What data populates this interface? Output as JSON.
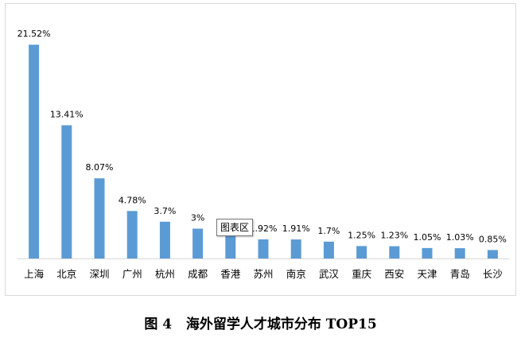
{
  "caption": "图 4   海外留学人才城市分布 TOP15",
  "tooltip_text": "图表区",
  "colors": {
    "bar": "#5b9bd5",
    "axis": "#d9d9d9"
  },
  "chart_data": {
    "type": "bar",
    "title": "",
    "xlabel": "",
    "ylabel": "",
    "ylim": [
      0,
      22.5
    ],
    "grid": false,
    "legend": "none",
    "categories": [
      "上海",
      "北京",
      "深圳",
      "广州",
      "杭州",
      "成都",
      "香港",
      "苏州",
      "南京",
      "武汉",
      "重庆",
      "西安",
      "天津",
      "青岛",
      "长沙"
    ],
    "values": [
      21.52,
      13.41,
      8.07,
      4.78,
      3.7,
      3.0,
      2.5,
      1.92,
      1.91,
      1.7,
      1.25,
      1.23,
      1.05,
      1.03,
      0.85
    ],
    "data_labels": [
      "21.52%",
      "13.41%",
      "8.07%",
      "4.78%",
      "3.7%",
      "3%",
      "",
      "1.92%",
      "1.91%",
      "1.7%",
      "1.25%",
      "1.23%",
      "1.05%",
      "1.03%",
      "0.85%"
    ]
  }
}
